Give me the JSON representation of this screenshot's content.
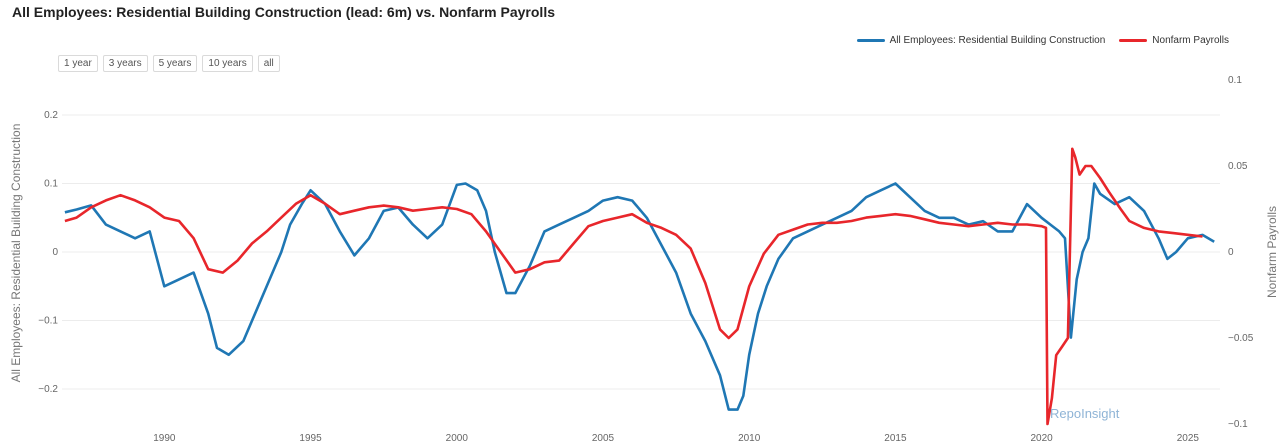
{
  "title": "All Employees: Residential Building Construction (lead: 6m) vs. Nonfarm Payrolls",
  "range_buttons": [
    "1 year",
    "3 years",
    "5 years",
    "10 years",
    "all"
  ],
  "legend": [
    {
      "label": "All Employees: Residential Building Construction",
      "color": "#1f77b4"
    },
    {
      "label": "Nonfarm Payrolls",
      "color": "#e8262b"
    }
  ],
  "watermark": "RepoInsight",
  "chart_data": {
    "type": "line",
    "title": "All Employees: Residential Building Construction (lead: 6m) vs. Nonfarm Payrolls",
    "xlabel": "",
    "ylabel": "All Employees: Residential Building Construction",
    "y2label": "Nonfarm Payrolls",
    "xlim": [
      1986.5,
      2026.1
    ],
    "ylim": [
      -0.24,
      0.2
    ],
    "y2lim": [
      -0.1,
      0.1
    ],
    "x_ticks": [
      1990,
      1995,
      2000,
      2005,
      2010,
      2015,
      2020,
      2025
    ],
    "y_ticks": [
      0.2,
      0.1,
      0,
      -0.1,
      -0.2
    ],
    "y_tick_labels": [
      "0.2",
      "0.1",
      "0",
      "−0.1",
      "−0.2"
    ],
    "y2_ticks": [
      0.1,
      0.05,
      0,
      -0.05,
      -0.1
    ],
    "y2_tick_labels": [
      "0.1",
      "0.05",
      "0",
      "−0.05",
      "−0.1"
    ],
    "grid": true,
    "legend_position": "top-right",
    "series": [
      {
        "name": "All Employees: Residential Building Construction",
        "axis": "left",
        "color": "#1f77b4",
        "x": [
          1986.6,
          1987.0,
          1987.5,
          1988.0,
          1988.5,
          1989.0,
          1989.5,
          1990.0,
          1990.5,
          1991.0,
          1991.5,
          1991.8,
          1992.2,
          1992.7,
          1993.0,
          1993.5,
          1994.0,
          1994.3,
          1994.7,
          1995.0,
          1995.5,
          1996.0,
          1996.5,
          1997.0,
          1997.5,
          1998.0,
          1998.5,
          1999.0,
          1999.5,
          2000.0,
          2000.3,
          2000.7,
          2001.0,
          2001.3,
          2001.7,
          2002.0,
          2002.5,
          2003.0,
          2003.5,
          2004.0,
          2004.5,
          2005.0,
          2005.5,
          2006.0,
          2006.5,
          2007.0,
          2007.5,
          2008.0,
          2008.5,
          2009.0,
          2009.3,
          2009.6,
          2009.8,
          2010.0,
          2010.3,
          2010.6,
          2011.0,
          2011.5,
          2012.0,
          2012.5,
          2013.0,
          2013.5,
          2014.0,
          2014.5,
          2015.0,
          2015.5,
          2016.0,
          2016.5,
          2017.0,
          2017.5,
          2018.0,
          2018.5,
          2019.0,
          2019.5,
          2020.0,
          2020.3,
          2020.6,
          2020.8,
          2021.0,
          2021.2,
          2021.4,
          2021.6,
          2021.8,
          2022.0,
          2022.5,
          2023.0,
          2023.5,
          2024.0,
          2024.3,
          2024.6,
          2025.0,
          2025.5,
          2025.9
        ],
        "values": [
          0.058,
          0.062,
          0.068,
          0.04,
          0.03,
          0.02,
          0.03,
          -0.05,
          -0.04,
          -0.03,
          -0.09,
          -0.14,
          -0.15,
          -0.13,
          -0.1,
          -0.05,
          0.0,
          0.04,
          0.07,
          0.09,
          0.07,
          0.03,
          -0.005,
          0.02,
          0.06,
          0.065,
          0.04,
          0.02,
          0.04,
          0.098,
          0.1,
          0.09,
          0.06,
          0.0,
          -0.06,
          -0.06,
          -0.02,
          0.03,
          0.04,
          0.05,
          0.06,
          0.075,
          0.08,
          0.075,
          0.05,
          0.01,
          -0.03,
          -0.09,
          -0.13,
          -0.18,
          -0.23,
          -0.23,
          -0.21,
          -0.15,
          -0.09,
          -0.05,
          -0.01,
          0.02,
          0.03,
          0.04,
          0.05,
          0.06,
          0.08,
          0.09,
          0.1,
          0.08,
          0.06,
          0.05,
          0.05,
          0.04,
          0.045,
          0.03,
          0.03,
          0.07,
          0.05,
          0.04,
          0.03,
          0.02,
          -0.125,
          -0.04,
          0.0,
          0.02,
          0.1,
          0.085,
          0.07,
          0.08,
          0.06,
          0.02,
          -0.01,
          0.0,
          0.02,
          0.025,
          0.015
        ]
      },
      {
        "name": "Nonfarm Payrolls",
        "axis": "right",
        "color": "#e8262b",
        "x": [
          1986.6,
          1987.0,
          1987.5,
          1988.0,
          1988.5,
          1989.0,
          1989.5,
          1990.0,
          1990.5,
          1991.0,
          1991.5,
          1992.0,
          1992.5,
          1993.0,
          1993.5,
          1994.0,
          1994.5,
          1995.0,
          1995.5,
          1996.0,
          1996.5,
          1997.0,
          1997.5,
          1998.0,
          1998.5,
          1999.0,
          1999.5,
          2000.0,
          2000.5,
          2001.0,
          2001.5,
          2002.0,
          2002.5,
          2003.0,
          2003.5,
          2004.0,
          2004.5,
          2005.0,
          2005.5,
          2006.0,
          2006.5,
          2007.0,
          2007.5,
          2008.0,
          2008.5,
          2009.0,
          2009.3,
          2009.6,
          2010.0,
          2010.5,
          2011.0,
          2011.5,
          2012.0,
          2012.5,
          2013.0,
          2013.5,
          2014.0,
          2014.5,
          2015.0,
          2015.5,
          2016.0,
          2016.5,
          2017.0,
          2017.5,
          2018.0,
          2018.5,
          2019.0,
          2019.5,
          2020.0,
          2020.15,
          2020.2,
          2020.35,
          2020.5,
          2020.7,
          2020.9,
          2021.05,
          2021.15,
          2021.3,
          2021.5,
          2021.7,
          2022.0,
          2022.3,
          2022.7,
          2023.0,
          2023.5,
          2024.0,
          2024.5,
          2025.0,
          2025.5
        ],
        "values": [
          0.018,
          0.02,
          0.026,
          0.03,
          0.033,
          0.03,
          0.026,
          0.02,
          0.018,
          0.008,
          -0.01,
          -0.012,
          -0.005,
          0.005,
          0.012,
          0.02,
          0.028,
          0.033,
          0.028,
          0.022,
          0.024,
          0.026,
          0.027,
          0.026,
          0.024,
          0.025,
          0.026,
          0.025,
          0.022,
          0.012,
          0.0,
          -0.012,
          -0.01,
          -0.006,
          -0.005,
          0.005,
          0.015,
          0.018,
          0.02,
          0.022,
          0.017,
          0.014,
          0.01,
          0.002,
          -0.018,
          -0.045,
          -0.05,
          -0.045,
          -0.02,
          -0.001,
          0.01,
          0.013,
          0.016,
          0.017,
          0.017,
          0.018,
          0.02,
          0.021,
          0.022,
          0.021,
          0.019,
          0.017,
          0.016,
          0.015,
          0.016,
          0.017,
          0.016,
          0.016,
          0.015,
          0.014,
          -0.1,
          -0.085,
          -0.06,
          -0.055,
          -0.05,
          0.06,
          0.055,
          0.045,
          0.05,
          0.05,
          0.043,
          0.035,
          0.025,
          0.018,
          0.014,
          0.012,
          0.011,
          0.01,
          0.009
        ]
      }
    ]
  }
}
